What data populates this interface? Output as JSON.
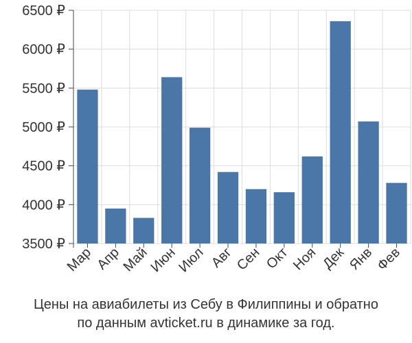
{
  "chart_data": {
    "type": "bar",
    "categories": [
      "Мар",
      "Апр",
      "Май",
      "Июн",
      "Июл",
      "Авг",
      "Сен",
      "Окт",
      "Ноя",
      "Дек",
      "Янв",
      "Фев"
    ],
    "values": [
      5480,
      3950,
      3830,
      5640,
      4990,
      4420,
      4200,
      4160,
      4620,
      6360,
      5070,
      4280
    ],
    "ylim": [
      3500,
      6500
    ],
    "yticks": [
      3500,
      4000,
      4500,
      5000,
      5500,
      6000,
      6500
    ],
    "y_tick_suffix": " ₽",
    "bar_color": "#4a76a8",
    "grid": true,
    "title": "",
    "xlabel": "",
    "ylabel": ""
  },
  "caption": {
    "line1": "Цены на авиабилеты из Себу в Филиппины и обратно",
    "line2": "по данным avticket.ru в динамике за год."
  }
}
